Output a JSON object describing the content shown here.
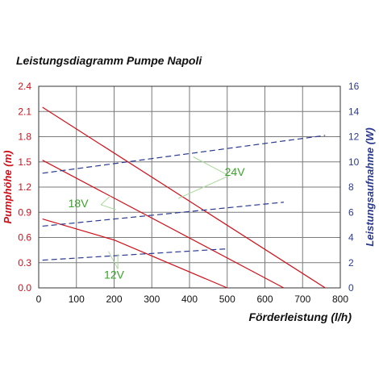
{
  "chart_data": {
    "type": "line",
    "title": "Leistungsdiagramm Pumpe Napoli",
    "xlabel": "Förderleistung (l/h)",
    "ylabel_left": "Pumphöhe (m)",
    "ylabel_right": "Leistungsaufnahme (W)",
    "xlim": [
      0,
      800
    ],
    "ylim_left": [
      0,
      2.4
    ],
    "ylim_right": [
      0,
      16
    ],
    "x_ticks": [
      "0",
      "100",
      "200",
      "300",
      "400",
      "500",
      "600",
      "700",
      "800"
    ],
    "y_left_ticks": [
      "0.0",
      "0.3",
      "0.6",
      "0.9",
      "1.2",
      "1.5",
      "1.8",
      "2.1",
      "2.4"
    ],
    "y_right_ticks": [
      "0",
      "2",
      "4",
      "6",
      "8",
      "10",
      "12",
      "14",
      "16"
    ],
    "grid": true,
    "colors": {
      "head": "#d0101a",
      "power": "#2b3a8f",
      "annotation": "#3aa32a",
      "grid": "#7a7a7a"
    },
    "series": [
      {
        "name": "24V",
        "axis": "left",
        "style": "solid",
        "x": [
          10,
          760
        ],
        "y": [
          2.15,
          0.0
        ]
      },
      {
        "name": "18V",
        "axis": "left",
        "style": "solid",
        "x": [
          10,
          650
        ],
        "y": [
          1.52,
          0.0
        ]
      },
      {
        "name": "12V",
        "axis": "left",
        "style": "solid",
        "x": [
          10,
          200,
          500
        ],
        "y": [
          0.82,
          0.57,
          0.0
        ]
      },
      {
        "name": "24V",
        "axis": "right",
        "style": "dashed",
        "x": [
          10,
          760
        ],
        "y": [
          9.1,
          12.1
        ]
      },
      {
        "name": "18V",
        "axis": "right",
        "style": "dashed",
        "x": [
          10,
          650
        ],
        "y": [
          4.9,
          6.8
        ]
      },
      {
        "name": "12V",
        "axis": "right",
        "style": "dashed",
        "x": [
          10,
          500
        ],
        "y": [
          2.2,
          3.1
        ]
      }
    ],
    "annotations": [
      "24V",
      "18V",
      "12V"
    ]
  }
}
